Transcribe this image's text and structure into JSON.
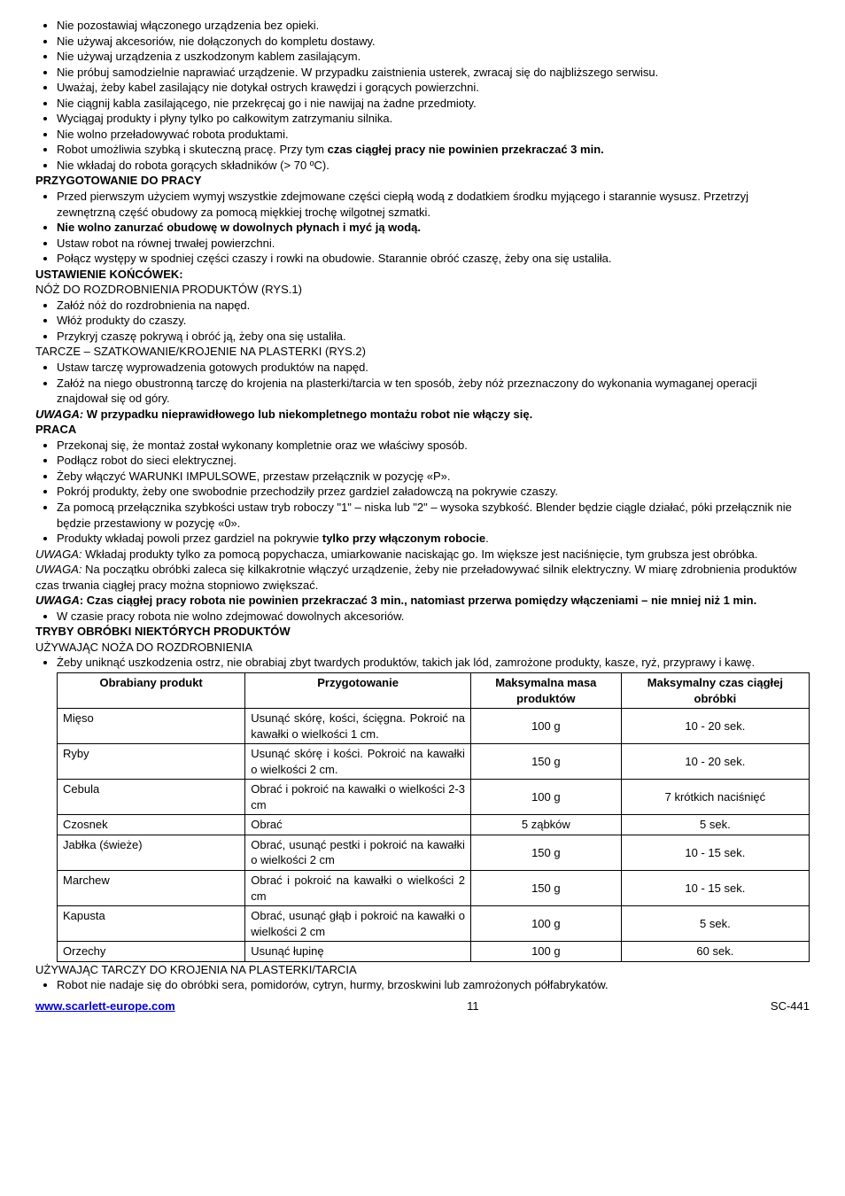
{
  "bullets1": [
    "Nie pozostawiaj włączonego urządzenia bez opieki.",
    "Nie używaj akcesoriów, nie dołączonych do kompletu dostawy.",
    "Nie używaj urządzenia z uszkodzonym kablem zasilającym.",
    "Nie próbuj samodzielnie naprawiać urządzenie. W przypadku zaistnienia usterek, zwracaj się do najbliższego serwisu.",
    "Uważaj, żeby kabel zasilający nie dotykał ostrych krawędzi i gorących powierzchni.",
    "Nie ciągnij kabla zasilającego, nie przekręcaj go i nie nawijaj na żadne przedmioty.",
    "Wyciągaj produkty i płyny tylko po całkowitym zatrzymaniu silnika.",
    "Nie wolno przeładowywać robota produktami."
  ],
  "bullet_robot_pre": "Robot umożliwia szybką i skuteczną pracę. Przy tym ",
  "bullet_robot_bold": "czas ciągłej pracy nie powinien przekraczać 3 min.",
  "bullet_hot": "Nie wkładaj do robota gorących składników (> 70 ºC).",
  "h1": "PRZYGOTOWANIE DO PRACY",
  "bullets2": [
    "Przed pierwszym użyciem wymyj wszystkie zdejmowane części ciepłą wodą z dodatkiem środku myjącego i starannie wysusz. Przetrzyj zewnętrzną część obudowy za pomocą miękkiej trochę wilgotnej szmatki."
  ],
  "bullet_bold_wash": "Nie wolno zanurzać obudowę w dowolnych płynach i myć ją wodą.",
  "bullets3": [
    "Ustaw robot na równej trwałej powierzchni.",
    "Połącz występy w spodniej części czaszy i rowki na obudowie. Starannie obróć czaszę, żeby ona się ustaliła."
  ],
  "h2": "USTAWIENIE KOŃCÓWEK:",
  "sub1": "NÓŻ DO ROZDROBNIENIA PRODUKTÓW (RYS.1)",
  "bullets4": [
    "Załóż nóż do rozdrobnienia na napęd.",
    "Włóż produkty do czaszy.",
    "Przykryj czaszę pokrywą i obróć ją, żeby ona się ustaliła."
  ],
  "sub2": "TARCZE – SZATKOWANIE/KROJENIE NA PLASTERKI (RYS.2)",
  "bullets5": [
    "Ustaw tarczę wyprowadzenia gotowych produktów na napęd.",
    "Załóż na niego obustronną tarczę do krojenia na plasterki/tarcia w ten sposób, żeby nóż przeznaczony do wykonania wymaganej operacji znajdował się od góry."
  ],
  "uwaga1_label": " UWAGA:",
  "uwaga1_text": " W przypadku nieprawidłowego lub niekompletnego montażu robot nie włączy się.",
  "h3": "PRACA",
  "bullets6": [
    "Przekonaj się, że montaż został wykonany kompletnie oraz we właściwy sposób.",
    "Podłącz robot do sieci elektrycznej.",
    "Żeby włączyć WARUNKI IMPULSOWE, przestaw przełącznik w pozycję «P».",
    "Pokrój produkty, żeby one swobodnie przechodziły przez gardziel załadowczą na pokrywie czaszy.",
    "Za pomocą przełącznika szybkości ustaw tryb roboczy \"1\" – niska lub \"2\" – wysoka szybkość. Blender będzie ciągle działać, póki przełącznik nie będzie przestawiony w pozycję «0»."
  ],
  "bullet_insert_pre": "Produkty wkładaj powoli przez gardziel na pokrywie ",
  "bullet_insert_bold": "tylko przy włączonym robocie",
  "uwaga2_label": "UWAGA:",
  "uwaga2_text": " Wkładaj produkty tylko za pomocą popychacza, umiarkowanie naciskając go. Im większe jest naciśnięcie, tym grubsza jest obróbka.",
  "uwaga3_label": "UWAGA:",
  "uwaga3_text": " Na początku obróbki zaleca się kilkakrotnie włączyć urządzenie, żeby nie przeładowywać silnik elektryczny. W miarę zdrobnienia produktów czas trwania ciągłej pracy można stopniowo zwiększać.",
  "uwaga4_label": "UWAGA",
  "uwaga4_text": ": Czas ciągłej pracy robota nie powinien przekraczać 3 min., natomiast przerwa pomiędzy włączeniami – nie mniej niż 1 min.",
  "bullets7": [
    "W czasie pracy robota nie wolno zdejmować dowolnych akcesoriów."
  ],
  "h4": "TRYBY OBRÓBKI NIEKTÓRYCH PRODUKTÓW",
  "sub3": "UŻYWAJĄC NOŻA DO ROZDROBNIENIA",
  "bullets8": [
    "Żeby uniknąć uszkodzenia ostrz, nie obrabiaj zbyt twardych produktów, takich jak lód, zamrożone produkty, kasze, ryż, przyprawy i kawę."
  ],
  "table": {
    "headers": [
      "Obrabiany produkt",
      "Przygotowanie",
      "Maksymalna masa produktów",
      "Maksymalny czas ciągłej obróbki"
    ],
    "rows": [
      [
        "Mięso",
        "Usunąć skórę, kości, ścięgna. Pokroić na kawałki o wielkości 1 cm.",
        "100 g",
        "10 - 20 sek."
      ],
      [
        "Ryby",
        "Usunąć skórę i kości. Pokroić na kawałki o wielkości 2 cm.",
        "150 g",
        "10 - 20 sek."
      ],
      [
        "Cebula",
        "Obrać i pokroić na kawałki o wielkości 2-3 cm",
        "100 g",
        "7 krótkich naciśnięć"
      ],
      [
        "Czosnek",
        "Obrać",
        "5 ząbków",
        "5 sek."
      ],
      [
        "Jabłka (świeże)",
        "Obrać, usunąć pestki i pokroić na kawałki o wielkości 2 cm",
        "150 g",
        "10 - 15 sek."
      ],
      [
        "Marchew",
        "Obrać i pokroić na kawałki o wielkości 2 cm",
        "150 g",
        "10 - 15 sek."
      ],
      [
        "Kapusta",
        "Obrać, usunąć głąb i pokroić na kawałki o wielkości 2 cm",
        "100 g",
        "5 sek."
      ],
      [
        "Orzechy",
        "Usunąć łupinę",
        "100 g",
        "60 sek."
      ]
    ],
    "col_widths": [
      "25%",
      "30%",
      "20%",
      "25%"
    ],
    "justify_cols": [
      1
    ]
  },
  "sub4": "UŻYWAJĄC TARCZY DO KROJENIA NA PLASTERKI/TARCIA",
  "bullets9": [
    "Robot nie nadaje się do obróbki sera, pomidorów, cytryn, hurmy, brzoskwini lub zamrożonych półfabrykatów."
  ],
  "footer": {
    "url": "www.scarlett-europe.com",
    "page": "11",
    "model": "SC-441"
  }
}
